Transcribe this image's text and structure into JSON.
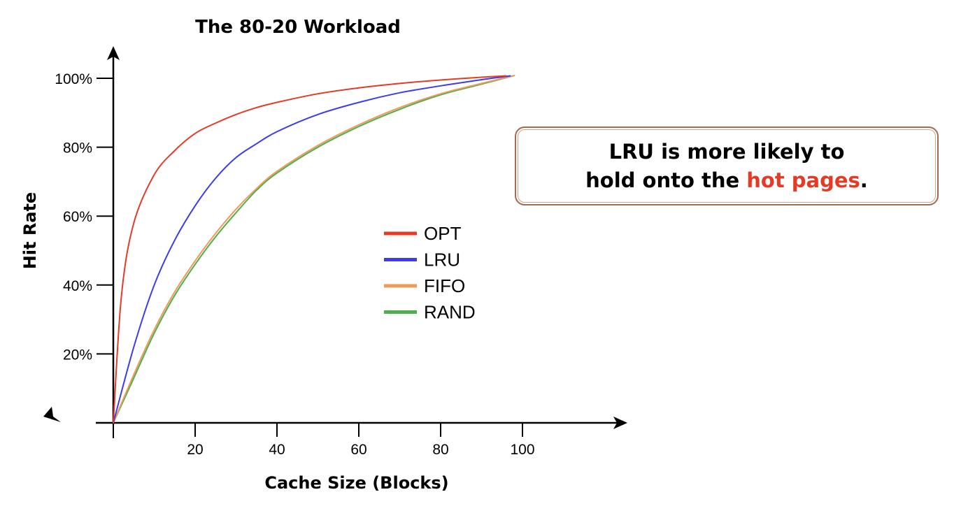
{
  "chart_data": {
    "type": "line",
    "title": "The 80-20 Workload",
    "xlabel": "Cache Size (Blocks)",
    "ylabel": "Hit Rate",
    "xlim": [
      0,
      100
    ],
    "ylim": [
      0,
      100
    ],
    "x_ticks": [
      "20",
      "40",
      "60",
      "80",
      "100"
    ],
    "y_ticks": [
      "20%",
      "40%",
      "60%",
      "80%",
      "100%"
    ],
    "grid": false,
    "legend_position": "center",
    "series": [
      {
        "name": "OPT",
        "color": "#e53a25",
        "x": [
          0,
          2,
          5,
          10,
          15,
          20,
          25,
          30,
          35,
          40,
          50,
          60,
          70,
          80,
          90,
          96
        ],
        "y": [
          0,
          37,
          58,
          72,
          79,
          84,
          87,
          89.5,
          91.5,
          93,
          95.5,
          97.2,
          98.5,
          99.5,
          100.3,
          100.7
        ]
      },
      {
        "name": "LRU",
        "color": "#3b3bf0",
        "x": [
          0,
          5,
          10,
          15,
          20,
          25,
          30,
          35,
          40,
          50,
          60,
          70,
          80,
          90,
          97
        ],
        "y": [
          0,
          22,
          40,
          53,
          63,
          71,
          77,
          81,
          84.5,
          89.5,
          93,
          95.8,
          97.8,
          99.6,
          100.7
        ]
      },
      {
        "name": "FIFO",
        "color": "#ef9a58",
        "x": [
          0,
          5,
          10,
          15,
          20,
          25,
          30,
          35,
          40,
          50,
          60,
          70,
          80,
          90,
          98
        ],
        "y": [
          0,
          14,
          27,
          38,
          47,
          55,
          62,
          68,
          73,
          80.5,
          86.5,
          91.5,
          95.5,
          98.5,
          100.8
        ]
      },
      {
        "name": "RAND",
        "color": "#4fae4f",
        "x": [
          0,
          5,
          10,
          15,
          20,
          25,
          30,
          35,
          40,
          50,
          60,
          70,
          80,
          90,
          98
        ],
        "y": [
          0,
          13,
          26,
          37,
          46,
          54,
          61,
          67.5,
          72.5,
          80,
          86,
          91,
          95.2,
          98.3,
          100.8
        ]
      }
    ]
  },
  "callout": {
    "line1": "LRU is more likely to",
    "line2_prefix": "hold onto the ",
    "line2_highlight": "hot pages",
    "line2_suffix": ".",
    "highlight_color": "#e53a25"
  }
}
